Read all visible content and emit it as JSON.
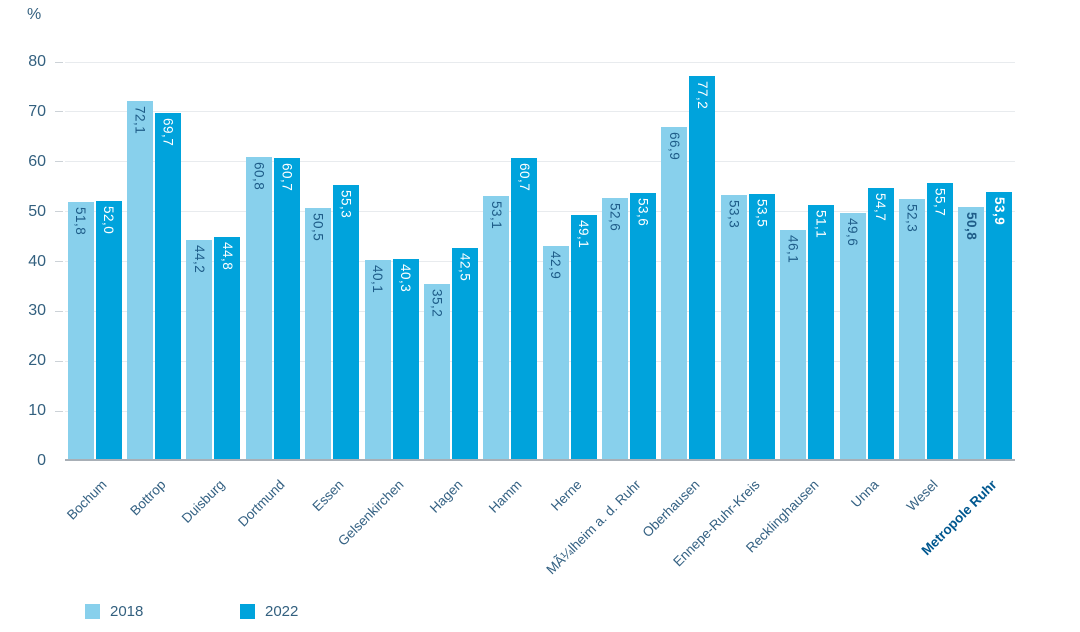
{
  "chart_data": {
    "type": "bar",
    "title": "",
    "xlabel": "",
    "ylabel": "%",
    "ylim": [
      0,
      80
    ],
    "yticks": [
      0,
      10,
      20,
      30,
      40,
      50,
      60,
      70,
      80
    ],
    "grid": true,
    "legend_position": "bottom-left",
    "categories": [
      "Bochum",
      "Bottrop",
      "Duisburg",
      "Dortmund",
      "Essen",
      "Gelsenkirchen",
      "Hagen",
      "Hamm",
      "Herne",
      "MÃ¼lheim a. d. Ruhr",
      "Oberhausen",
      "Ennepe-Ruhr-Kreis",
      "Recklinghausen",
      "Unna",
      "Wesel",
      "Metropole Ruhr"
    ],
    "emphasis_index": 15,
    "series": [
      {
        "name": "2018",
        "color": "#88D0EC",
        "values": [
          51.8,
          72.1,
          44.2,
          60.8,
          50.5,
          40.1,
          35.2,
          53.1,
          42.9,
          52.6,
          66.9,
          53.3,
          46.1,
          49.6,
          52.3,
          50.8
        ],
        "labels": [
          "51,8",
          "72,1",
          "44,2",
          "60,8",
          "50,5",
          "40,1",
          "35,2",
          "53,1",
          "42,9",
          "52,6",
          "66,9",
          "53,3",
          "46,1",
          "49,6",
          "52,3",
          "50,8"
        ]
      },
      {
        "name": "2022",
        "color": "#00A3DC",
        "values": [
          52.0,
          69.7,
          44.8,
          60.7,
          55.3,
          40.3,
          42.5,
          60.7,
          49.1,
          53.6,
          77.2,
          53.5,
          51.1,
          54.7,
          55.7,
          53.9
        ],
        "labels": [
          "52,0",
          "69,7",
          "44,8",
          "60,7",
          "55,3",
          "40,3",
          "42,5",
          "60,7",
          "49,1",
          "53,6",
          "77,2",
          "53,5",
          "51,1",
          "54,7",
          "55,7",
          "53,9"
        ]
      }
    ]
  },
  "colors": {
    "background": "#FFFFFF",
    "axis_text": "#33607F",
    "bar_label_on_light": "#1E5C88",
    "bar_label_on_dark": "#FFFFFF",
    "category_text": "#336082",
    "emphasis_text": "#00578F",
    "gridline": "#E8EBEE",
    "baseline": "#A8AFB6"
  }
}
